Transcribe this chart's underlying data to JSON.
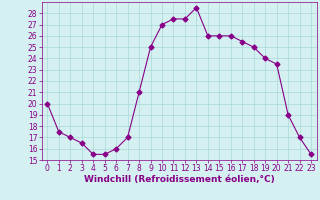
{
  "x": [
    0,
    1,
    2,
    3,
    4,
    5,
    6,
    7,
    8,
    9,
    10,
    11,
    12,
    13,
    14,
    15,
    16,
    17,
    18,
    19,
    20,
    21,
    22,
    23
  ],
  "y": [
    20,
    17.5,
    17,
    16.5,
    15.5,
    15.5,
    16,
    17,
    21,
    25,
    27,
    27.5,
    27.5,
    28.5,
    26,
    26,
    26,
    25.5,
    25,
    24,
    23.5,
    19,
    17,
    15.5
  ],
  "line_color": "#880088",
  "marker": "D",
  "marker_size": 2.5,
  "bg_color": "#d4f0f0",
  "grid_color": "#aad8d8",
  "xlabel": "Windchill (Refroidissement éolien,°C)",
  "xlabel_color": "#880088",
  "ylim": [
    15,
    29
  ],
  "xlim": [
    -0.5,
    23.5
  ],
  "yticks": [
    15,
    16,
    17,
    18,
    19,
    20,
    21,
    22,
    23,
    24,
    25,
    26,
    27,
    28
  ],
  "xticks": [
    0,
    1,
    2,
    3,
    4,
    5,
    6,
    7,
    8,
    9,
    10,
    11,
    12,
    13,
    14,
    15,
    16,
    17,
    18,
    19,
    20,
    21,
    22,
    23
  ],
  "tick_color": "#880088",
  "tick_fontsize": 5.5,
  "xlabel_fontsize": 6.5
}
